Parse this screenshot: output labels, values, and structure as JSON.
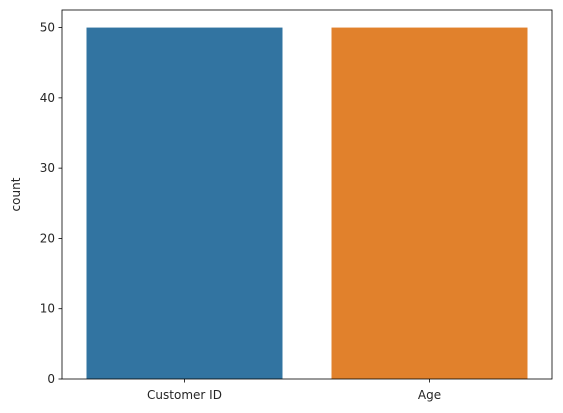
{
  "chart_data": {
    "type": "bar",
    "categories": [
      "Customer ID",
      "Age"
    ],
    "values": [
      50,
      50
    ],
    "colors": [
      "#3274a1",
      "#e1812c"
    ],
    "title": "",
    "xlabel": "",
    "ylabel": "count",
    "ylim": [
      0,
      52.5
    ],
    "yticks": [
      0,
      10,
      20,
      30,
      40,
      50
    ],
    "grid": false,
    "legend": false
  }
}
